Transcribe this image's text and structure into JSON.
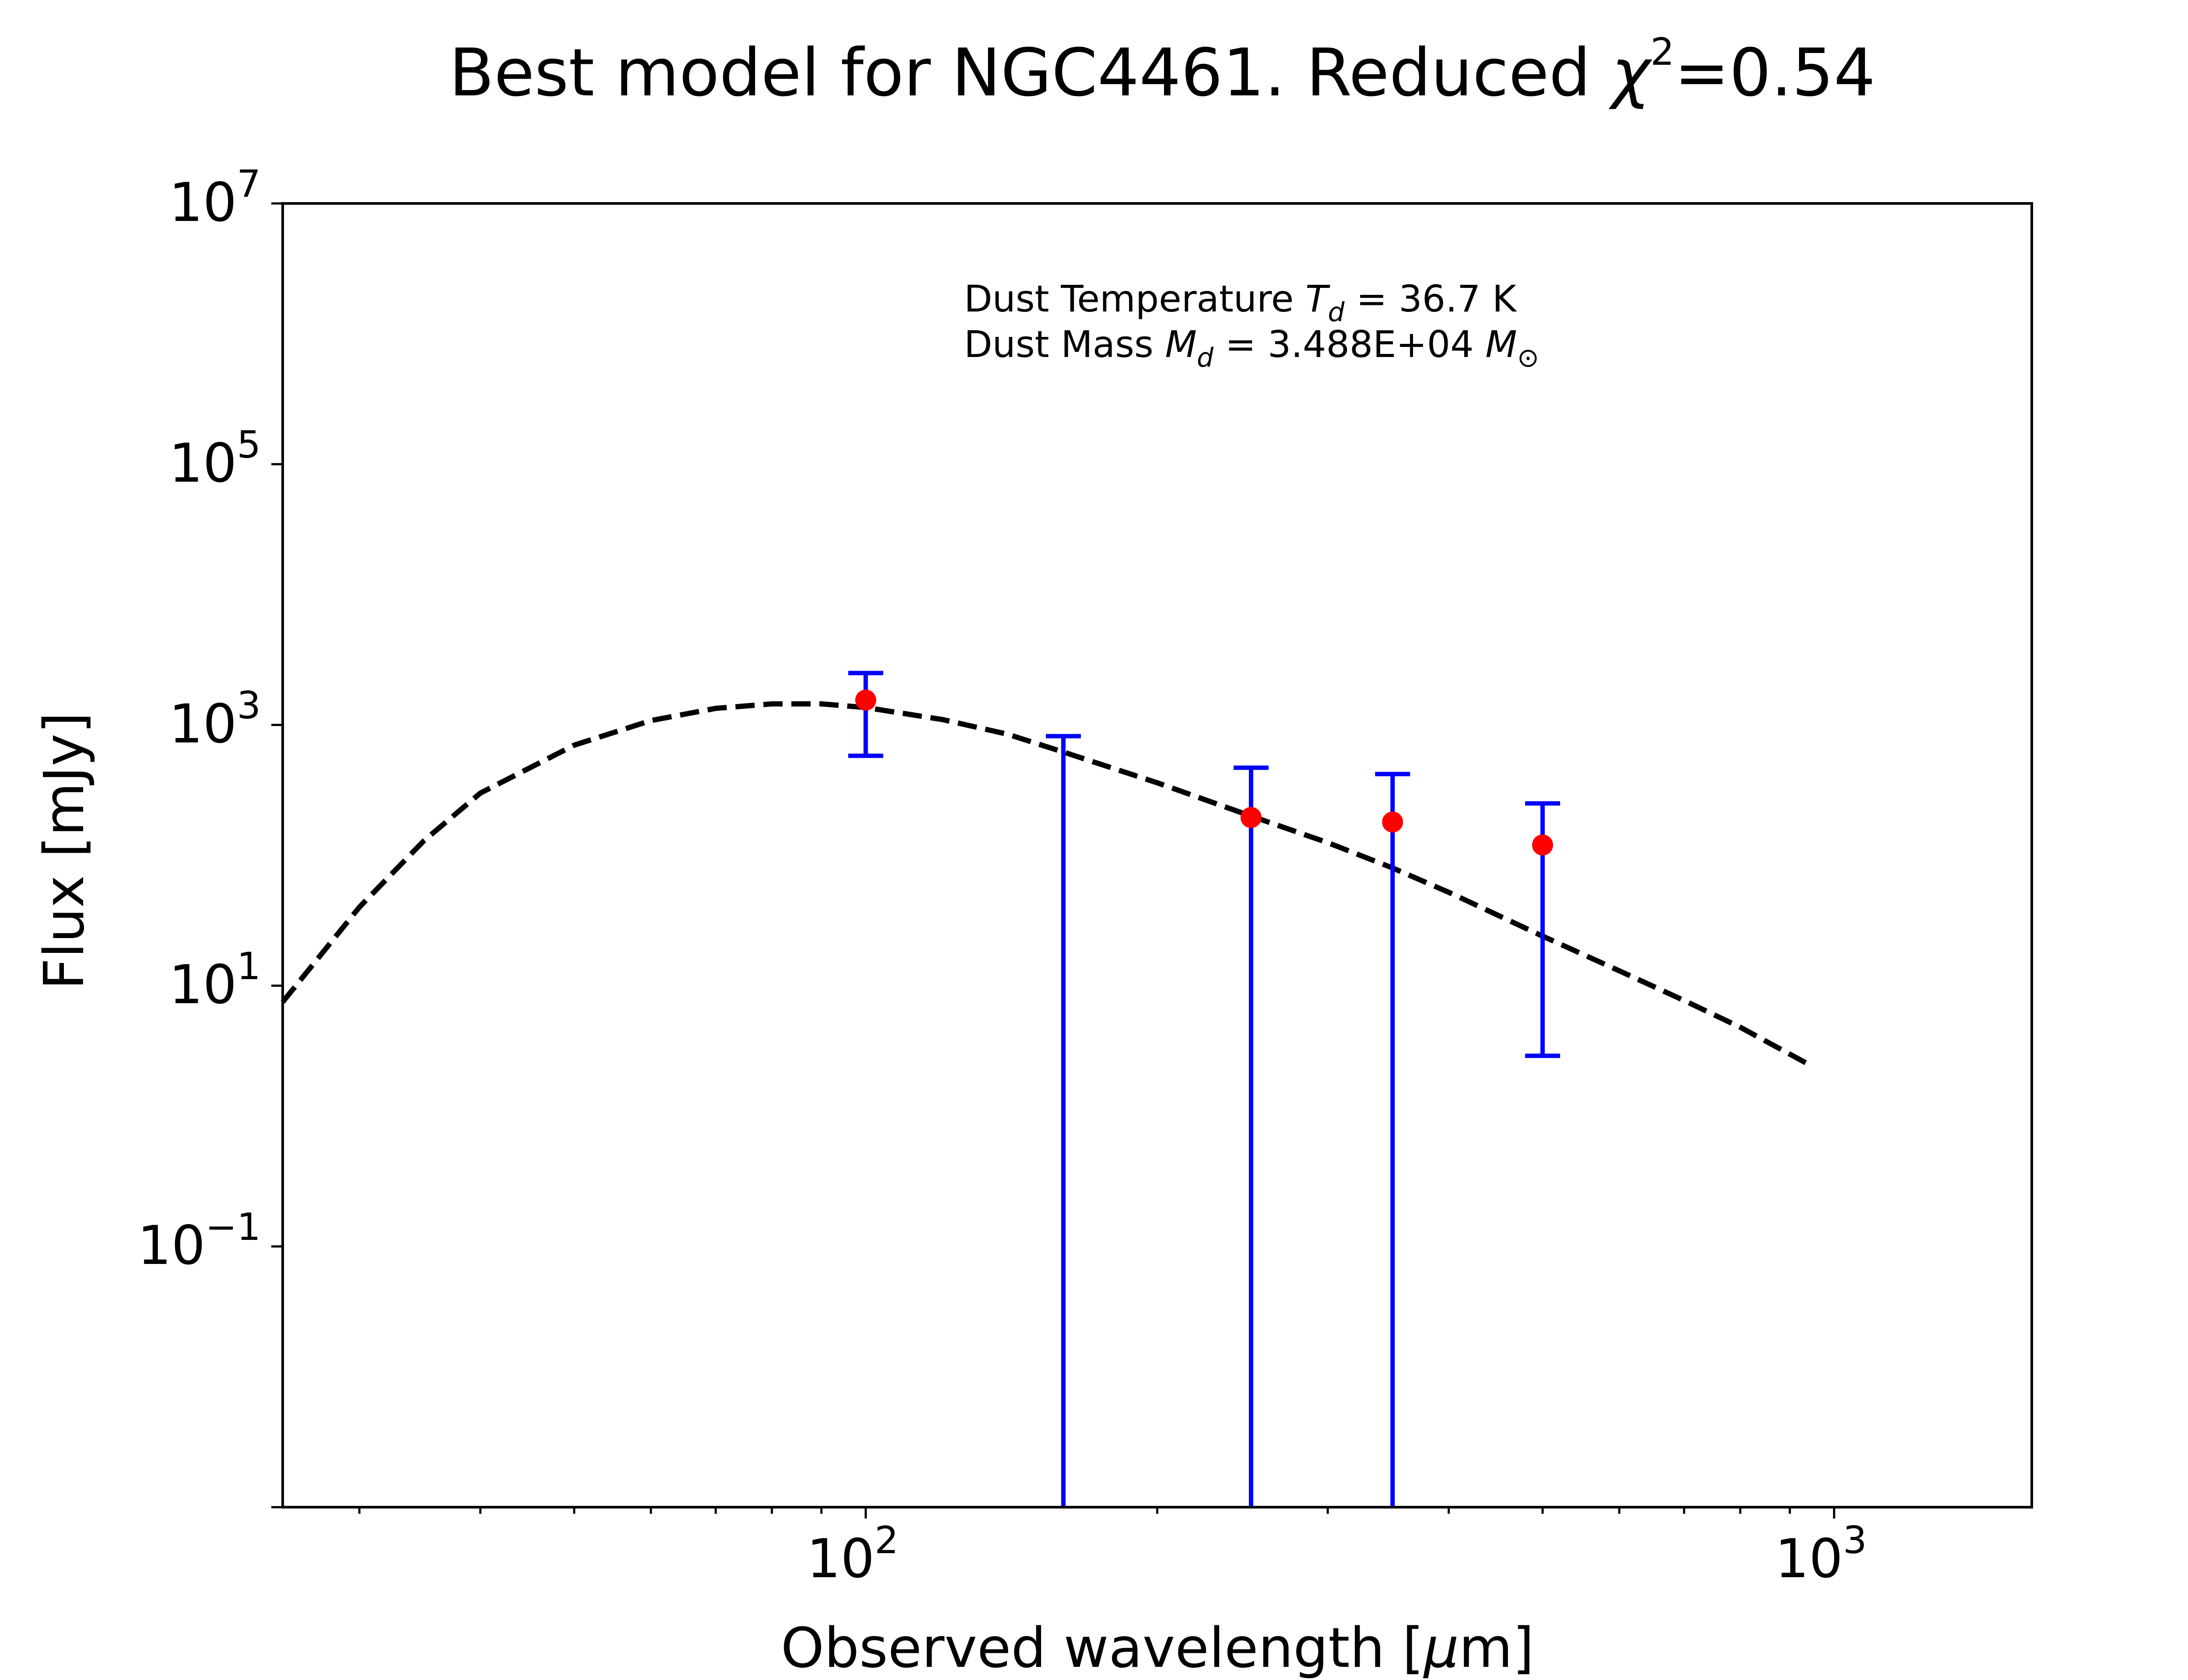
{
  "chart_data": {
    "type": "scatter",
    "title": {
      "prefix": "Best model for NGC4461. Reduced ",
      "symbol": "χ",
      "sup": "2",
      "suffix": "=0.54"
    },
    "xlabel": {
      "prefix": "Observed wavelength [",
      "mu": "μ",
      "suffix": "m]"
    },
    "ylabel": "Flux [mJy]",
    "x_scale": "log",
    "y_scale": "log",
    "xlim": [
      25,
      1600
    ],
    "ylim": [
      0.001,
      10000000
    ],
    "x_ticks": [
      {
        "value": 100,
        "base": "10",
        "exp": "2"
      },
      {
        "value": 1000,
        "base": "10",
        "exp": "3"
      }
    ],
    "y_ticks": [
      {
        "value": 0.1,
        "base": "10",
        "exp": "−1"
      },
      {
        "value": 10,
        "base": "10",
        "exp": "1"
      },
      {
        "value": 1000,
        "base": "10",
        "exp": "3"
      },
      {
        "value": 100000,
        "base": "10",
        "exp": "5"
      },
      {
        "value": 10000000,
        "base": "10",
        "exp": "7"
      }
    ],
    "grid": false,
    "annotations": [
      {
        "prefix": "Dust Temperature ",
        "sym": "T",
        "sub": "d",
        "suffix": " = 36.7 K"
      },
      {
        "prefix": "Dust Mass ",
        "sym": "M",
        "sub": "d",
        "mid": " = 3.488E+04 ",
        "sym2": "M",
        "sub2": "⊙"
      }
    ],
    "series": [
      {
        "kind": "observations",
        "marker_color": "#ff0000",
        "errorbar_color": "#0000ff",
        "points": [
          {
            "x": 100,
            "y": 1550,
            "y_low": 580,
            "y_high": 2500
          },
          {
            "x": 160,
            "y": null,
            "y_low": 0.001,
            "y_high": 820
          },
          {
            "x": 250,
            "y": 195,
            "y_low": 0.001,
            "y_high": 470
          },
          {
            "x": 350,
            "y": 180,
            "y_low": 0.001,
            "y_high": 420
          },
          {
            "x": 500,
            "y": 120,
            "y_low": 2.9,
            "y_high": 250
          }
        ]
      },
      {
        "kind": "model",
        "style": "dashed",
        "line_color": "#000000",
        "points": [
          {
            "x": 25,
            "y": 7.5
          },
          {
            "x": 30,
            "y": 40
          },
          {
            "x": 35,
            "y": 130
          },
          {
            "x": 40,
            "y": 300
          },
          {
            "x": 50,
            "y": 700
          },
          {
            "x": 60,
            "y": 1080
          },
          {
            "x": 70,
            "y": 1340
          },
          {
            "x": 80,
            "y": 1450
          },
          {
            "x": 90,
            "y": 1450
          },
          {
            "x": 100,
            "y": 1360
          },
          {
            "x": 120,
            "y": 1100
          },
          {
            "x": 140,
            "y": 850
          },
          {
            "x": 160,
            "y": 620
          },
          {
            "x": 200,
            "y": 360
          },
          {
            "x": 250,
            "y": 200
          },
          {
            "x": 300,
            "y": 125
          },
          {
            "x": 350,
            "y": 80
          },
          {
            "x": 400,
            "y": 52
          },
          {
            "x": 500,
            "y": 24
          },
          {
            "x": 600,
            "y": 13
          },
          {
            "x": 700,
            "y": 7.7
          },
          {
            "x": 800,
            "y": 4.8
          },
          {
            "x": 950,
            "y": 2.4
          }
        ]
      }
    ]
  }
}
